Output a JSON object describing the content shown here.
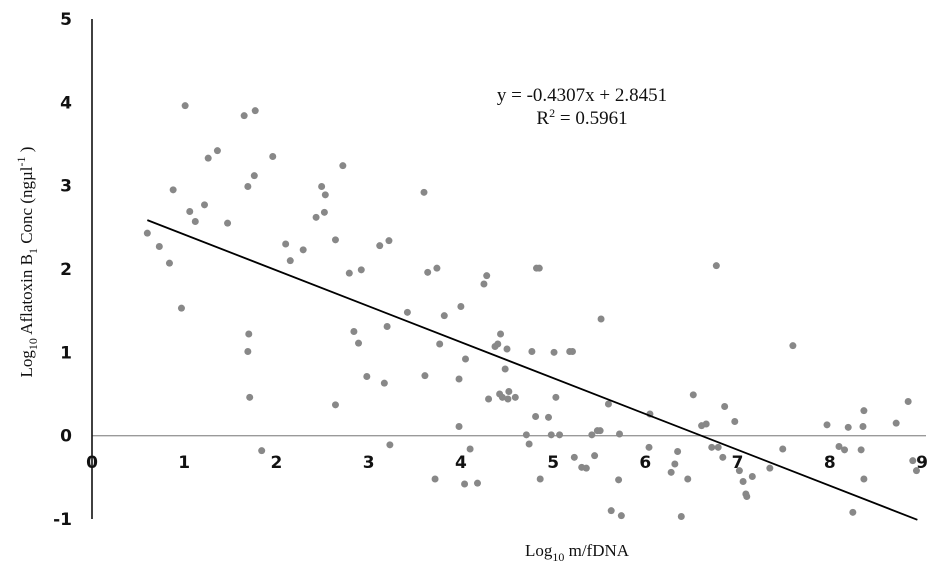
{
  "chart_data": {
    "type": "scatter",
    "xlabel": {
      "prefix": "Log",
      "sub": "10",
      "rest": " m/fDNA"
    },
    "ylabel": {
      "prefix": "Log",
      "sub": "10",
      "mid": " Aflatoxin B",
      "sub2": "1",
      "tail": "  Conc (ngµl",
      "sup": "-1",
      "end": " )"
    },
    "xlim": [
      0,
      9
    ],
    "ylim": [
      -1,
      5
    ],
    "x_ticks": [
      "0",
      "1",
      "2",
      "3",
      "4",
      "5",
      "6",
      "7",
      "8",
      "9"
    ],
    "y_ticks": [
      "-1",
      "0",
      "1",
      "2",
      "3",
      "4",
      "5"
    ],
    "trendline": {
      "slope": -0.4307,
      "intercept": 2.8451,
      "x_range": [
        0.6,
        8.95
      ]
    },
    "equation": "y = -0.4307x + 2.8451",
    "r_squared": {
      "prefix": "R",
      "sup": "2",
      "rest": " = 0.5961"
    },
    "point_color": "#888888",
    "line_color": "#000000",
    "points": [
      [
        0.6,
        2.43
      ],
      [
        0.73,
        2.27
      ],
      [
        0.84,
        2.07
      ],
      [
        0.88,
        2.95
      ],
      [
        0.97,
        1.53
      ],
      [
        1.01,
        3.96
      ],
      [
        1.06,
        2.69
      ],
      [
        1.12,
        2.57
      ],
      [
        1.22,
        2.77
      ],
      [
        1.26,
        3.33
      ],
      [
        1.36,
        3.42
      ],
      [
        1.47,
        2.55
      ],
      [
        1.65,
        3.84
      ],
      [
        1.69,
        2.99
      ],
      [
        1.69,
        1.01
      ],
      [
        1.7,
        1.22
      ],
      [
        1.71,
        0.46
      ],
      [
        1.76,
        3.12
      ],
      [
        1.77,
        3.9
      ],
      [
        1.84,
        -0.18
      ],
      [
        1.96,
        3.35
      ],
      [
        2.1,
        2.3
      ],
      [
        2.15,
        2.1
      ],
      [
        2.29,
        2.23
      ],
      [
        2.43,
        2.62
      ],
      [
        2.49,
        2.99
      ],
      [
        2.52,
        2.68
      ],
      [
        2.53,
        2.89
      ],
      [
        2.64,
        2.35
      ],
      [
        2.64,
        0.37
      ],
      [
        2.72,
        3.24
      ],
      [
        2.79,
        1.95
      ],
      [
        2.84,
        1.25
      ],
      [
        2.89,
        1.11
      ],
      [
        2.92,
        1.99
      ],
      [
        2.98,
        0.71
      ],
      [
        3.12,
        2.28
      ],
      [
        3.17,
        0.63
      ],
      [
        3.2,
        1.31
      ],
      [
        3.22,
        2.34
      ],
      [
        3.23,
        -0.11
      ],
      [
        3.42,
        1.48
      ],
      [
        3.6,
        2.92
      ],
      [
        3.61,
        0.72
      ],
      [
        3.64,
        1.96
      ],
      [
        3.72,
        -0.52
      ],
      [
        3.74,
        2.01
      ],
      [
        3.77,
        1.1
      ],
      [
        3.82,
        1.44
      ],
      [
        3.98,
        0.68
      ],
      [
        3.98,
        0.11
      ],
      [
        4.0,
        1.55
      ],
      [
        4.04,
        -0.58
      ],
      [
        4.05,
        0.92
      ],
      [
        4.1,
        -0.16
      ],
      [
        4.18,
        -0.57
      ],
      [
        4.25,
        1.82
      ],
      [
        4.28,
        1.92
      ],
      [
        4.3,
        0.44
      ],
      [
        4.37,
        1.07
      ],
      [
        4.4,
        1.1
      ],
      [
        4.42,
        0.5
      ],
      [
        4.43,
        1.22
      ],
      [
        4.45,
        0.46
      ],
      [
        4.48,
        0.8
      ],
      [
        4.5,
        1.04
      ],
      [
        4.51,
        0.44
      ],
      [
        4.52,
        0.53
      ],
      [
        4.59,
        0.46
      ],
      [
        4.71,
        0.01
      ],
      [
        4.74,
        -0.1
      ],
      [
        4.77,
        1.01
      ],
      [
        4.81,
        0.23
      ],
      [
        4.82,
        2.01
      ],
      [
        4.85,
        2.01
      ],
      [
        4.86,
        -0.52
      ],
      [
        4.95,
        0.22
      ],
      [
        4.98,
        0.01
      ],
      [
        5.01,
        1.0
      ],
      [
        5.03,
        0.46
      ],
      [
        5.07,
        0.01
      ],
      [
        5.18,
        1.01
      ],
      [
        5.21,
        1.01
      ],
      [
        5.23,
        -0.26
      ],
      [
        5.31,
        -0.38
      ],
      [
        5.36,
        -0.39
      ],
      [
        5.42,
        0.01
      ],
      [
        5.45,
        -0.24
      ],
      [
        5.48,
        0.06
      ],
      [
        5.51,
        0.06
      ],
      [
        5.52,
        1.4
      ],
      [
        5.6,
        0.38
      ],
      [
        5.63,
        -0.9
      ],
      [
        5.71,
        -0.53
      ],
      [
        5.72,
        0.02
      ],
      [
        5.74,
        -0.96
      ],
      [
        6.04,
        -0.14
      ],
      [
        6.05,
        0.26
      ],
      [
        6.28,
        -0.44
      ],
      [
        6.32,
        -0.34
      ],
      [
        6.35,
        -0.19
      ],
      [
        6.39,
        -0.97
      ],
      [
        6.46,
        -0.52
      ],
      [
        6.52,
        0.49
      ],
      [
        6.61,
        0.12
      ],
      [
        6.66,
        0.14
      ],
      [
        6.72,
        -0.14
      ],
      [
        6.77,
        2.04
      ],
      [
        6.79,
        -0.14
      ],
      [
        6.84,
        -0.26
      ],
      [
        6.86,
        0.35
      ],
      [
        6.97,
        0.17
      ],
      [
        7.02,
        -0.42
      ],
      [
        7.06,
        -0.55
      ],
      [
        7.09,
        -0.7
      ],
      [
        7.1,
        -0.73
      ],
      [
        7.16,
        -0.49
      ],
      [
        7.35,
        -0.39
      ],
      [
        7.49,
        -0.16
      ],
      [
        7.6,
        1.08
      ],
      [
        7.97,
        0.13
      ],
      [
        8.1,
        -0.13
      ],
      [
        8.16,
        -0.17
      ],
      [
        8.2,
        0.1
      ],
      [
        8.25,
        -0.92
      ],
      [
        8.34,
        -0.17
      ],
      [
        8.36,
        0.11
      ],
      [
        8.37,
        -0.52
      ],
      [
        8.37,
        0.3
      ],
      [
        8.72,
        0.15
      ],
      [
        8.85,
        0.41
      ],
      [
        8.9,
        -0.3
      ],
      [
        8.94,
        -0.42
      ]
    ]
  }
}
